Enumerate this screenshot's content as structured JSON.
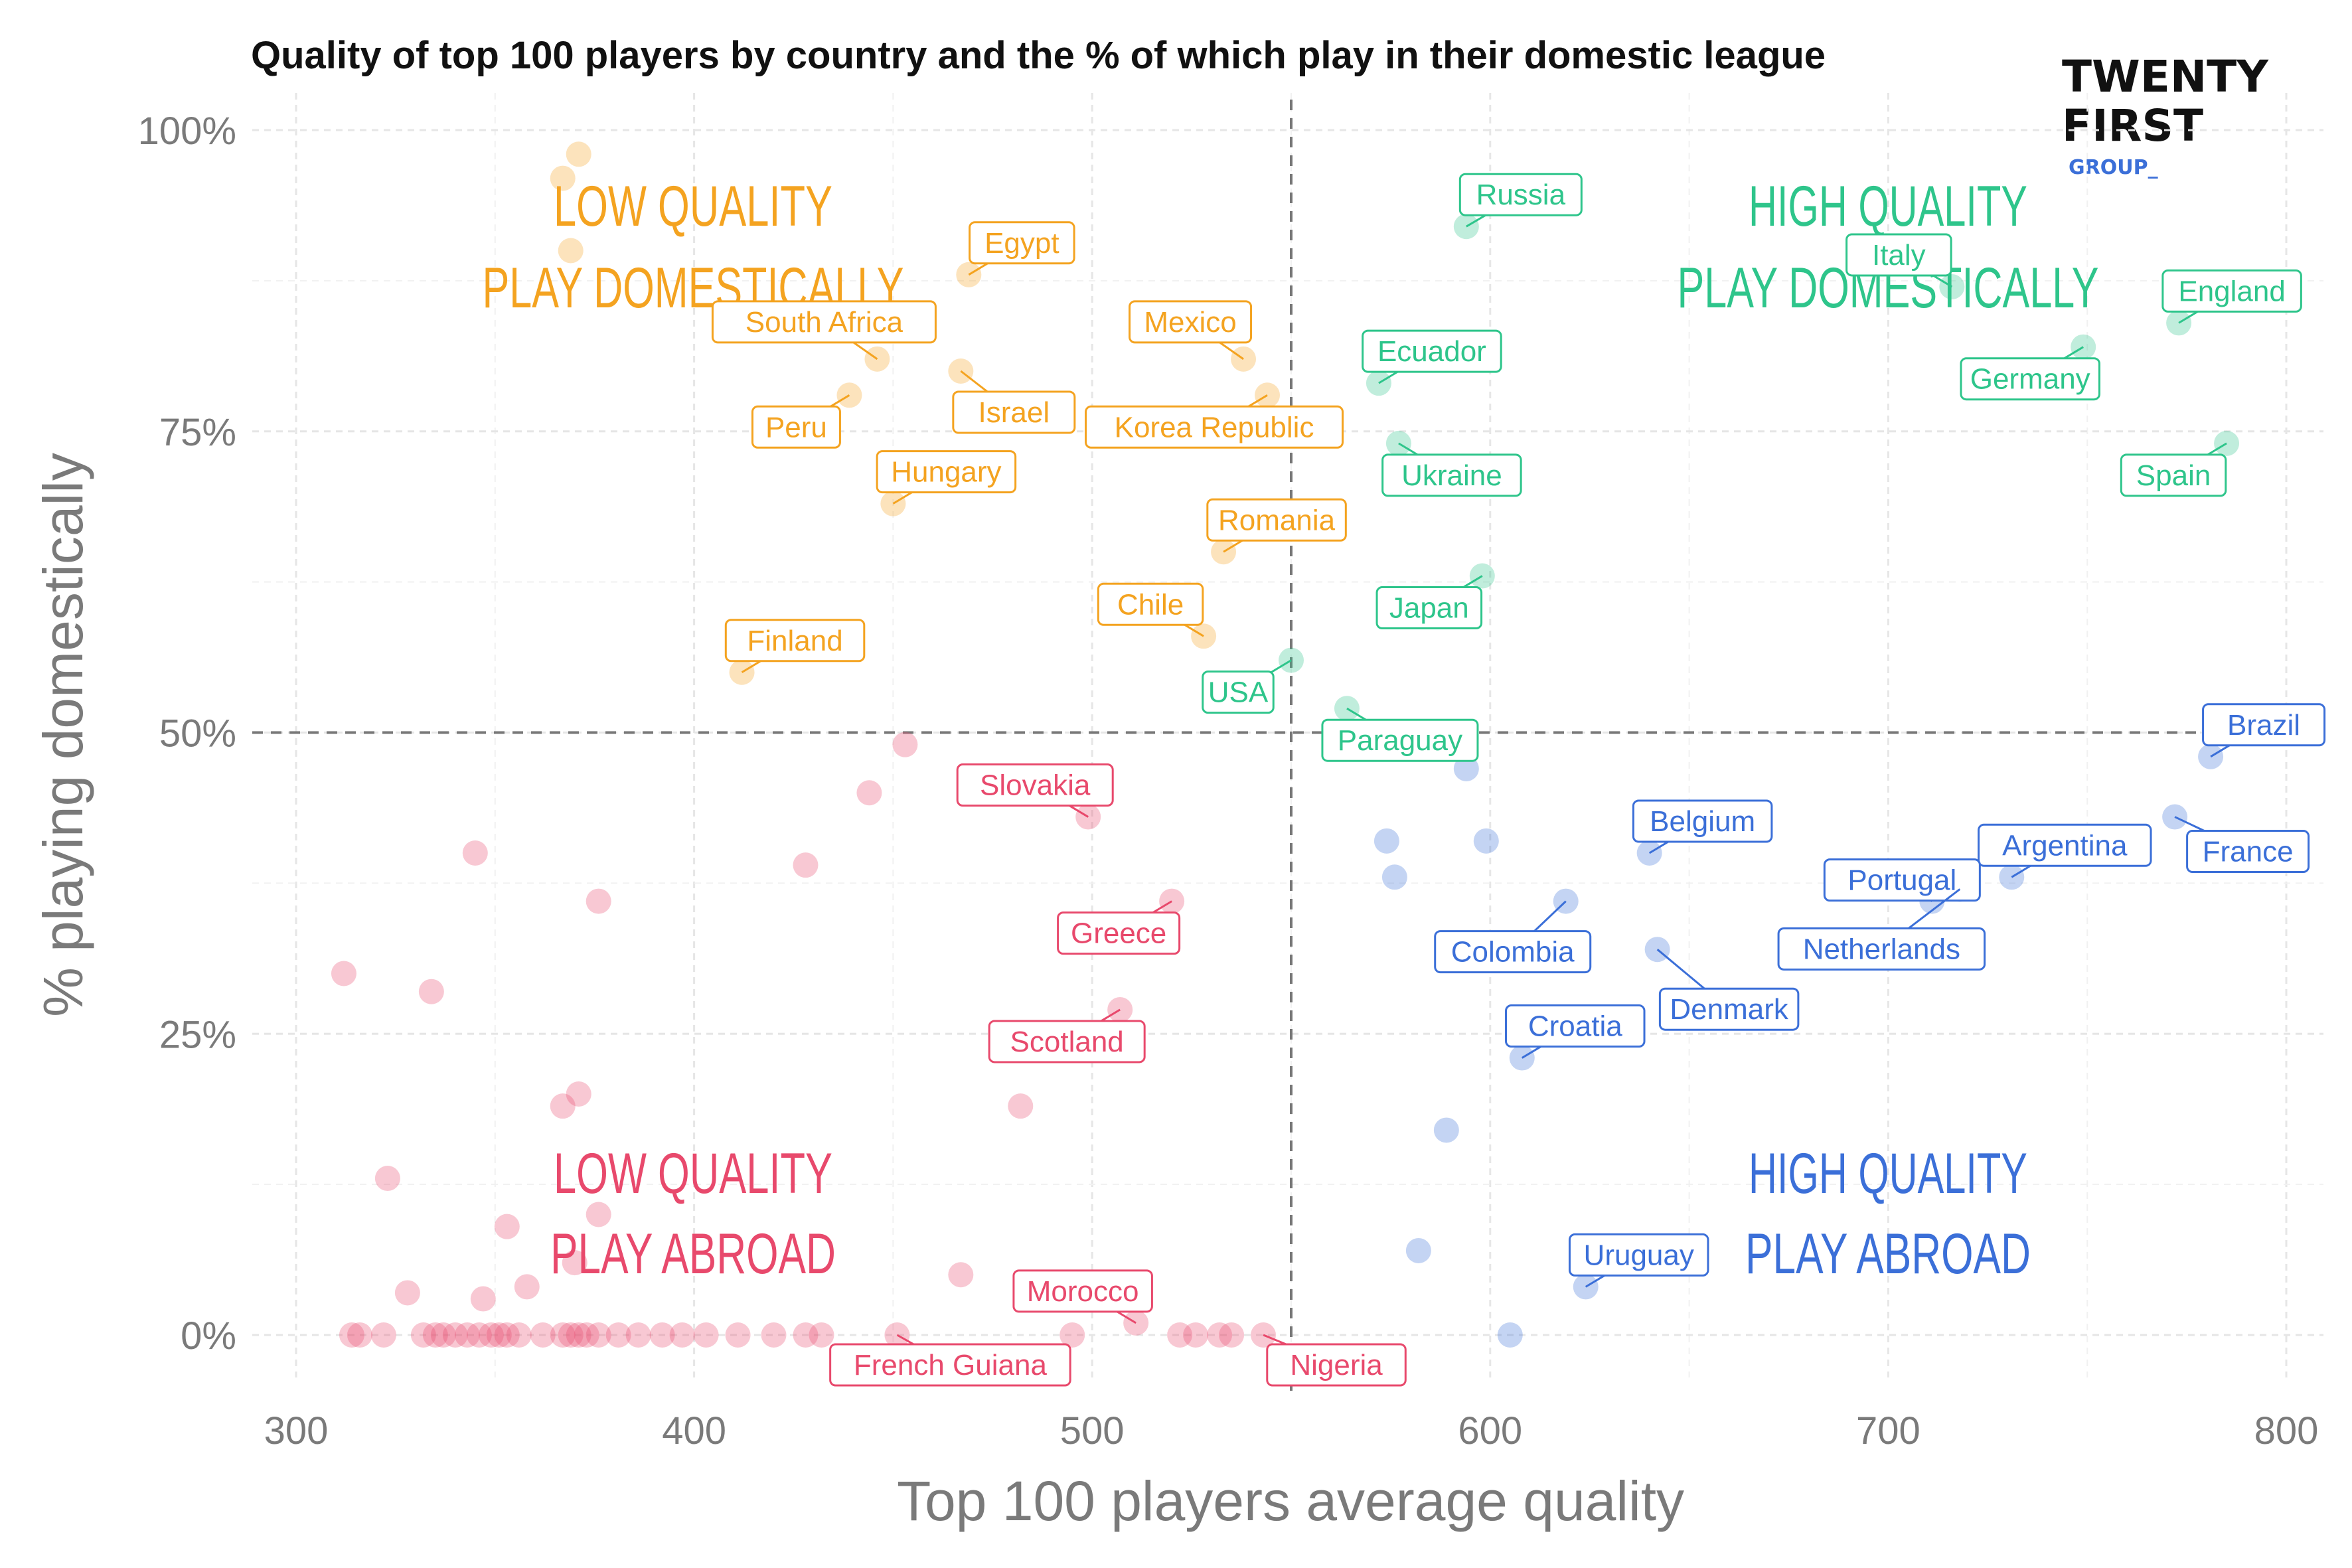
{
  "chart_data": {
    "type": "scatter",
    "title": "Quality of top 100 players by country and the % of which play in their domestic league",
    "xlabel": "Top 100 players average quality",
    "ylabel": "% playing domestically",
    "xlim": [
      290,
      810
    ],
    "ylim": [
      -5,
      102
    ],
    "x_ticks": [
      "300",
      "400",
      "500",
      "600",
      "700",
      "800"
    ],
    "y_ticks": [
      "0%",
      "25%",
      "50%",
      "75%",
      "100%"
    ],
    "reference_lines": {
      "x": 550,
      "y": 50
    },
    "quadrant_labels": [
      {
        "key": "low_dom",
        "line1": "LOW QUALITY",
        "line2": "PLAY DOMESTICALLY",
        "color": "#f4a320"
      },
      {
        "key": "high_dom",
        "line1": "HIGH QUALITY",
        "line2": "PLAY DOMESTICALLY",
        "color": "#2ec58b"
      },
      {
        "key": "low_abr",
        "line1": "LOW QUALITY",
        "line2": "PLAY ABROAD",
        "color": "#e8496c"
      },
      {
        "key": "high_abr",
        "line1": "HIGH QUALITY",
        "line2": "PLAY ABROAD",
        "color": "#3b6fd8"
      }
    ],
    "colors": {
      "low_dom": "#f4a320",
      "high_dom": "#2ec58b",
      "low_abr": "#e8496c",
      "high_abr": "#3b6fd8"
    },
    "labeled_points": [
      {
        "name": "Egypt",
        "x": 469,
        "y": 88,
        "group": "low_dom"
      },
      {
        "name": "South Africa",
        "x": 446,
        "y": 81,
        "group": "low_dom"
      },
      {
        "name": "Israel",
        "x": 467,
        "y": 80,
        "group": "low_dom"
      },
      {
        "name": "Peru",
        "x": 439,
        "y": 78,
        "group": "low_dom"
      },
      {
        "name": "Hungary",
        "x": 450,
        "y": 69,
        "group": "low_dom"
      },
      {
        "name": "Mexico",
        "x": 538,
        "y": 81,
        "group": "low_dom"
      },
      {
        "name": "Korea Republic",
        "x": 544,
        "y": 78,
        "group": "low_dom"
      },
      {
        "name": "Romania",
        "x": 533,
        "y": 65,
        "group": "low_dom"
      },
      {
        "name": "Chile",
        "x": 528,
        "y": 58,
        "group": "low_dom"
      },
      {
        "name": "Finland",
        "x": 412,
        "y": 55,
        "group": "low_dom"
      },
      {
        "name": "Russia",
        "x": 594,
        "y": 92,
        "group": "high_dom"
      },
      {
        "name": "Italy",
        "x": 716,
        "y": 87,
        "group": "high_dom"
      },
      {
        "name": "England",
        "x": 773,
        "y": 84,
        "group": "high_dom"
      },
      {
        "name": "Germany",
        "x": 749,
        "y": 82,
        "group": "high_dom"
      },
      {
        "name": "Ecuador",
        "x": 572,
        "y": 79,
        "group": "high_dom"
      },
      {
        "name": "Ukraine",
        "x": 577,
        "y": 74,
        "group": "high_dom"
      },
      {
        "name": "Spain",
        "x": 785,
        "y": 74,
        "group": "high_dom"
      },
      {
        "name": "Japan",
        "x": 598,
        "y": 63,
        "group": "high_dom"
      },
      {
        "name": "USA",
        "x": 550,
        "y": 56,
        "group": "high_dom"
      },
      {
        "name": "Paraguay",
        "x": 564,
        "y": 52,
        "group": "high_dom"
      },
      {
        "name": "Brazil",
        "x": 781,
        "y": 48,
        "group": "high_abr"
      },
      {
        "name": "France",
        "x": 772,
        "y": 43,
        "group": "high_abr"
      },
      {
        "name": "Belgium",
        "x": 640,
        "y": 40,
        "group": "high_abr"
      },
      {
        "name": "Argentina",
        "x": 731,
        "y": 38,
        "group": "high_abr"
      },
      {
        "name": "Portugal",
        "x": 711,
        "y": 36,
        "group": "high_abr"
      },
      {
        "name": "Netherlands",
        "x": 718,
        "y": 37,
        "group": "high_abr"
      },
      {
        "name": "Colombia",
        "x": 619,
        "y": 36,
        "group": "high_abr"
      },
      {
        "name": "Denmark",
        "x": 642,
        "y": 32,
        "group": "high_abr"
      },
      {
        "name": "Croatia",
        "x": 608,
        "y": 23,
        "group": "high_abr"
      },
      {
        "name": "Uruguay",
        "x": 624,
        "y": 4,
        "group": "high_abr"
      },
      {
        "name": "Slovakia",
        "x": 499,
        "y": 43,
        "group": "low_abr"
      },
      {
        "name": "Greece",
        "x": 520,
        "y": 36,
        "group": "low_abr"
      },
      {
        "name": "Scotland",
        "x": 507,
        "y": 27,
        "group": "low_abr"
      },
      {
        "name": "Morocco",
        "x": 511,
        "y": 1,
        "group": "low_abr"
      },
      {
        "name": "French Guiana",
        "x": 451,
        "y": 0,
        "group": "low_abr"
      },
      {
        "name": "Nigeria",
        "x": 543,
        "y": 0,
        "group": "low_abr"
      }
    ],
    "other_points": [
      {
        "x": 371,
        "y": 98,
        "group": "low_dom"
      },
      {
        "x": 367,
        "y": 96,
        "group": "low_dom"
      },
      {
        "x": 369,
        "y": 90,
        "group": "low_dom"
      },
      {
        "x": 594,
        "y": 47,
        "group": "high_abr"
      },
      {
        "x": 574,
        "y": 41,
        "group": "high_abr"
      },
      {
        "x": 599,
        "y": 41,
        "group": "high_abr"
      },
      {
        "x": 576,
        "y": 38,
        "group": "high_abr"
      },
      {
        "x": 589,
        "y": 17,
        "group": "high_abr"
      },
      {
        "x": 582,
        "y": 7,
        "group": "high_abr"
      },
      {
        "x": 605,
        "y": 0,
        "group": "high_abr"
      },
      {
        "x": 453,
        "y": 49,
        "group": "low_abr"
      },
      {
        "x": 444,
        "y": 45,
        "group": "low_abr"
      },
      {
        "x": 345,
        "y": 40,
        "group": "low_abr"
      },
      {
        "x": 428,
        "y": 39,
        "group": "low_abr"
      },
      {
        "x": 376,
        "y": 36,
        "group": "low_abr"
      },
      {
        "x": 312,
        "y": 30,
        "group": "low_abr"
      },
      {
        "x": 334,
        "y": 28.5,
        "group": "low_abr"
      },
      {
        "x": 371,
        "y": 20,
        "group": "low_abr"
      },
      {
        "x": 367,
        "y": 19,
        "group": "low_abr"
      },
      {
        "x": 482,
        "y": 19,
        "group": "low_abr"
      },
      {
        "x": 323,
        "y": 13,
        "group": "low_abr"
      },
      {
        "x": 376,
        "y": 10,
        "group": "low_abr"
      },
      {
        "x": 353,
        "y": 9,
        "group": "low_abr"
      },
      {
        "x": 370,
        "y": 6,
        "group": "low_abr"
      },
      {
        "x": 467,
        "y": 5,
        "group": "low_abr"
      },
      {
        "x": 358,
        "y": 4,
        "group": "low_abr"
      },
      {
        "x": 328,
        "y": 3.5,
        "group": "low_abr"
      },
      {
        "x": 347,
        "y": 3,
        "group": "low_abr"
      },
      {
        "x": 314,
        "y": 0,
        "group": "low_abr"
      },
      {
        "x": 316,
        "y": 0,
        "group": "low_abr"
      },
      {
        "x": 322,
        "y": 0,
        "group": "low_abr"
      },
      {
        "x": 332,
        "y": 0,
        "group": "low_abr"
      },
      {
        "x": 335,
        "y": 0,
        "group": "low_abr"
      },
      {
        "x": 337,
        "y": 0,
        "group": "low_abr"
      },
      {
        "x": 340,
        "y": 0,
        "group": "low_abr"
      },
      {
        "x": 343,
        "y": 0,
        "group": "low_abr"
      },
      {
        "x": 346,
        "y": 0,
        "group": "low_abr"
      },
      {
        "x": 349,
        "y": 0,
        "group": "low_abr"
      },
      {
        "x": 351,
        "y": 0,
        "group": "low_abr"
      },
      {
        "x": 353,
        "y": 0,
        "group": "low_abr"
      },
      {
        "x": 356,
        "y": 0,
        "group": "low_abr"
      },
      {
        "x": 362,
        "y": 0,
        "group": "low_abr"
      },
      {
        "x": 367,
        "y": 0,
        "group": "low_abr"
      },
      {
        "x": 369,
        "y": 0,
        "group": "low_abr"
      },
      {
        "x": 371,
        "y": 0,
        "group": "low_abr"
      },
      {
        "x": 373,
        "y": 0,
        "group": "low_abr"
      },
      {
        "x": 376,
        "y": 0,
        "group": "low_abr"
      },
      {
        "x": 381,
        "y": 0,
        "group": "low_abr"
      },
      {
        "x": 386,
        "y": 0,
        "group": "low_abr"
      },
      {
        "x": 392,
        "y": 0,
        "group": "low_abr"
      },
      {
        "x": 397,
        "y": 0,
        "group": "low_abr"
      },
      {
        "x": 403,
        "y": 0,
        "group": "low_abr"
      },
      {
        "x": 411,
        "y": 0,
        "group": "low_abr"
      },
      {
        "x": 420,
        "y": 0,
        "group": "low_abr"
      },
      {
        "x": 428,
        "y": 0,
        "group": "low_abr"
      },
      {
        "x": 432,
        "y": 0,
        "group": "low_abr"
      },
      {
        "x": 495,
        "y": 0,
        "group": "low_abr"
      },
      {
        "x": 522,
        "y": 0,
        "group": "low_abr"
      },
      {
        "x": 526,
        "y": 0,
        "group": "low_abr"
      },
      {
        "x": 532,
        "y": 0,
        "group": "low_abr"
      },
      {
        "x": 535,
        "y": 0,
        "group": "low_abr"
      }
    ],
    "grid": true,
    "legend": "none"
  },
  "logo": {
    "line1": "TWENTY",
    "line2": "FIRST",
    "line3": "GROUP_",
    "color_main": "#111111",
    "color_sub": "#3b6fd8"
  }
}
